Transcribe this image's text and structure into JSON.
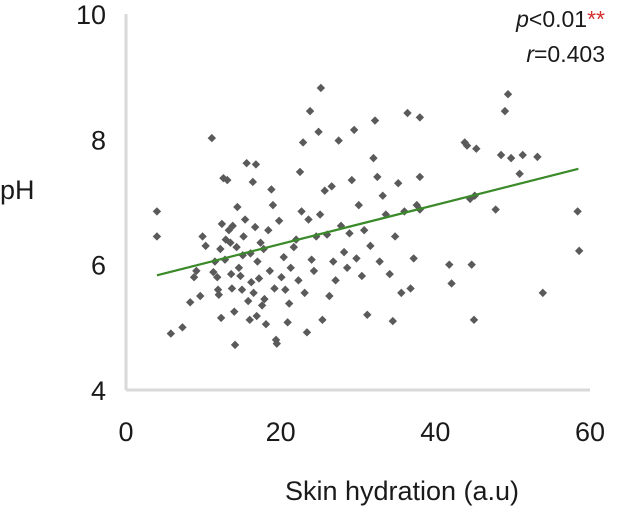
{
  "chart_data": {
    "type": "scatter",
    "xlabel": "Skin hydration (a.u)",
    "ylabel": "pH",
    "xlim": [
      0,
      60
    ],
    "ylim": [
      4,
      10
    ],
    "xticks": [
      "0",
      "20",
      "40",
      "60"
    ],
    "yticks": [
      "4",
      "6",
      "8",
      "10"
    ],
    "grid": false,
    "marker_color": "#5a5a5a",
    "trendline_color": "#3a8a2a",
    "axis_color": "#d9d9d9",
    "annotation": {
      "p_symbol": "p",
      "p_value": "<0.01",
      "stars": "**",
      "r_symbol": "r",
      "r_value": "=0.403",
      "stars_color": "#d32f2f"
    },
    "trendline": {
      "x": [
        4,
        58.5
      ],
      "y": [
        5.83,
        7.53
      ]
    },
    "points": [
      [
        4.0,
        6.85
      ],
      [
        4.0,
        6.45
      ],
      [
        5.8,
        4.9
      ],
      [
        7.3,
        5.0
      ],
      [
        8.3,
        5.4
      ],
      [
        8.8,
        5.8
      ],
      [
        9.1,
        5.9
      ],
      [
        9.6,
        5.5
      ],
      [
        9.9,
        6.45
      ],
      [
        10.3,
        6.3
      ],
      [
        11.1,
        8.02
      ],
      [
        11.3,
        5.88
      ],
      [
        11.5,
        6.05
      ],
      [
        11.8,
        5.8
      ],
      [
        11.9,
        5.6
      ],
      [
        12.0,
        5.52
      ],
      [
        12.2,
        6.25
      ],
      [
        12.3,
        5.15
      ],
      [
        12.4,
        6.65
      ],
      [
        12.6,
        7.38
      ],
      [
        12.8,
        6.08
      ],
      [
        12.9,
        6.4
      ],
      [
        13.1,
        7.35
      ],
      [
        13.3,
        6.55
      ],
      [
        13.5,
        6.35
      ],
      [
        13.6,
        5.85
      ],
      [
        13.7,
        5.62
      ],
      [
        13.8,
        6.62
      ],
      [
        14.0,
        5.25
      ],
      [
        14.1,
        4.72
      ],
      [
        14.3,
        6.28
      ],
      [
        14.4,
        6.92
      ],
      [
        14.6,
        5.95
      ],
      [
        14.8,
        5.82
      ],
      [
        15.0,
        5.6
      ],
      [
        15.1,
        6.15
      ],
      [
        15.2,
        6.45
      ],
      [
        15.4,
        6.72
      ],
      [
        15.6,
        7.62
      ],
      [
        15.8,
        5.42
      ],
      [
        16.0,
        5.12
      ],
      [
        16.1,
        6.18
      ],
      [
        16.2,
        5.72
      ],
      [
        16.4,
        7.32
      ],
      [
        16.5,
        5.55
      ],
      [
        16.7,
        6.6
      ],
      [
        16.8,
        7.6
      ],
      [
        16.9,
        5.18
      ],
      [
        17.0,
        6.05
      ],
      [
        17.2,
        5.78
      ],
      [
        17.4,
        6.35
      ],
      [
        17.6,
        5.35
      ],
      [
        17.8,
        6.25
      ],
      [
        17.9,
        5.45
      ],
      [
        18.1,
        5.05
      ],
      [
        18.4,
        6.55
      ],
      [
        18.6,
        5.9
      ],
      [
        18.8,
        7.2
      ],
      [
        19.0,
        6.95
      ],
      [
        19.2,
        5.62
      ],
      [
        19.4,
        4.8
      ],
      [
        19.5,
        4.74
      ],
      [
        19.8,
        6.7
      ],
      [
        20.1,
        5.8
      ],
      [
        20.4,
        6.12
      ],
      [
        20.6,
        5.6
      ],
      [
        20.9,
        5.08
      ],
      [
        21.1,
        5.38
      ],
      [
        21.3,
        5.95
      ],
      [
        21.7,
        6.28
      ],
      [
        22.0,
        6.4
      ],
      [
        22.3,
        5.75
      ],
      [
        22.5,
        7.48
      ],
      [
        22.7,
        6.85
      ],
      [
        22.9,
        7.95
      ],
      [
        23.1,
        5.55
      ],
      [
        23.4,
        4.92
      ],
      [
        23.6,
        6.72
      ],
      [
        23.8,
        8.45
      ],
      [
        24.0,
        6.08
      ],
      [
        24.3,
        5.9
      ],
      [
        24.6,
        6.45
      ],
      [
        24.9,
        8.12
      ],
      [
        25.1,
        6.8
      ],
      [
        25.2,
        8.82
      ],
      [
        25.4,
        5.12
      ],
      [
        25.7,
        7.18
      ],
      [
        26.0,
        6.48
      ],
      [
        26.3,
        5.5
      ],
      [
        26.6,
        7.25
      ],
      [
        26.8,
        6.05
      ],
      [
        27.1,
        5.75
      ],
      [
        27.5,
        7.98
      ],
      [
        27.8,
        6.62
      ],
      [
        28.2,
        6.2
      ],
      [
        28.6,
        5.95
      ],
      [
        28.9,
        6.5
      ],
      [
        29.2,
        7.35
      ],
      [
        29.5,
        8.15
      ],
      [
        29.8,
        6.1
      ],
      [
        30.1,
        6.95
      ],
      [
        30.5,
        5.82
      ],
      [
        30.8,
        6.55
      ],
      [
        31.2,
        5.2
      ],
      [
        31.6,
        6.3
      ],
      [
        32.0,
        7.7
      ],
      [
        32.2,
        8.3
      ],
      [
        32.5,
        7.4
      ],
      [
        32.8,
        6.05
      ],
      [
        33.2,
        7.1
      ],
      [
        33.6,
        6.8
      ],
      [
        34.1,
        5.85
      ],
      [
        34.5,
        5.1
      ],
      [
        34.8,
        6.45
      ],
      [
        35.2,
        7.3
      ],
      [
        35.6,
        5.55
      ],
      [
        36.0,
        6.85
      ],
      [
        36.4,
        8.42
      ],
      [
        36.8,
        5.62
      ],
      [
        37.2,
        6.1
      ],
      [
        37.6,
        6.95
      ],
      [
        38.0,
        8.35
      ],
      [
        38.0,
        7.4
      ],
      [
        38.0,
        6.88
      ],
      [
        41.8,
        6.0
      ],
      [
        42.1,
        5.7
      ],
      [
        43.8,
        7.95
      ],
      [
        44.1,
        7.9
      ],
      [
        44.5,
        7.05
      ],
      [
        44.7,
        6.0
      ],
      [
        45.0,
        5.12
      ],
      [
        45.1,
        7.1
      ],
      [
        45.3,
        7.85
      ],
      [
        47.8,
        6.88
      ],
      [
        48.5,
        7.75
      ],
      [
        49.0,
        8.45
      ],
      [
        49.4,
        8.72
      ],
      [
        49.8,
        7.7
      ],
      [
        50.9,
        7.45
      ],
      [
        51.3,
        7.75
      ],
      [
        53.2,
        7.72
      ],
      [
        53.9,
        5.55
      ],
      [
        58.4,
        6.85
      ],
      [
        58.6,
        6.22
      ]
    ]
  }
}
